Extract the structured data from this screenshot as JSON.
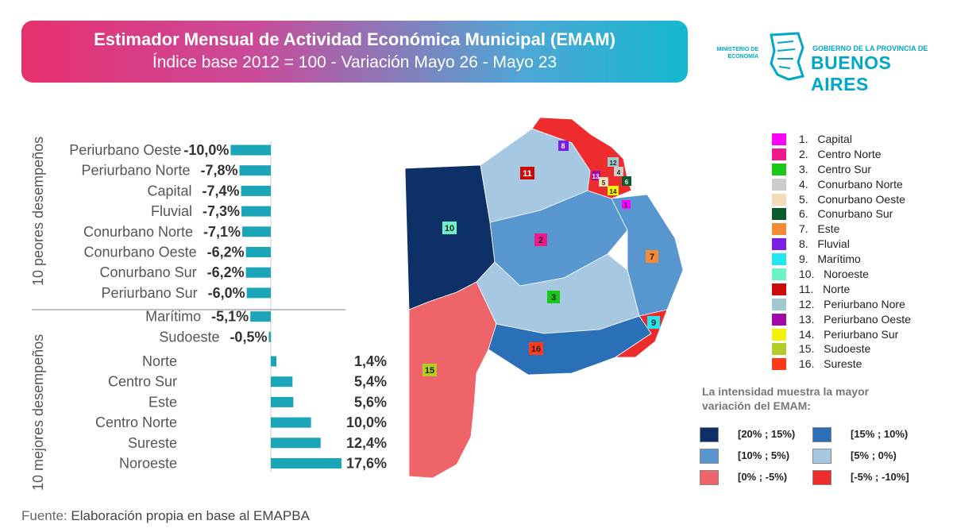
{
  "header": {
    "title": "Estimador Mensual de Actividad Económica Municipal (EMAM)",
    "subtitle": "Índice base 2012 = 100 - Variación Mayo 26 - Mayo 23"
  },
  "logo": {
    "ministry_line1": "MINISTERIO DE",
    "ministry_line2": "ECONOMÍA",
    "gov_line": "GOBIERNO DE LA PROVINCIA DE",
    "province": "BUENOS AIRES"
  },
  "groups": {
    "worst_label": "10 peores desempeños",
    "best_label": "10 mejores desempeños"
  },
  "chart_data": {
    "type": "bar",
    "orientation": "horizontal",
    "categories": [
      "Periurbano Oeste",
      "Periurbano Norte",
      "Capital",
      "Fluvial",
      "Conurbano Norte",
      "Conurbano Oeste",
      "Conurbano Sur",
      "Periurbano Sur",
      "Marítimo",
      "Sudoeste",
      "Norte",
      "Centro Sur",
      "Este",
      "Centro Norte",
      "Sureste",
      "Noroeste"
    ],
    "values": [
      -10.0,
      -7.8,
      -7.4,
      -7.3,
      -7.1,
      -6.2,
      -6.2,
      -6.0,
      -5.1,
      -0.5,
      1.4,
      5.4,
      5.6,
      10.0,
      12.4,
      17.6
    ],
    "value_labels": [
      "-10,0%",
      "-7,8%",
      "-7,4%",
      "-7,3%",
      "-7,1%",
      "-6,2%",
      "-6,2%",
      "-6,0%",
      "-5,1%",
      "-0,5%",
      "1,4%",
      "5,4%",
      "5,6%",
      "10,0%",
      "12,4%",
      "17,6%"
    ],
    "bar_color": "#1aa5b8"
  },
  "map_labels": [
    "1",
    "2",
    "3",
    "4",
    "5",
    "6",
    "7",
    "8",
    "9",
    "10",
    "11",
    "12",
    "13",
    "14",
    "15",
    "16"
  ],
  "map_colors": {
    "range_20_15": "#0d3069",
    "range_15_10": "#2a70b8",
    "range_10_5": "#5796cf",
    "range_5_0": "#a6c8e3",
    "range_0_m5": "#ee6468",
    "range_m5_m10": "#ee2b2d"
  },
  "legend": [
    {
      "num": "1.",
      "name": "Capital",
      "color": "#ff00ff"
    },
    {
      "num": "2.",
      "name": "Centro Norte",
      "color": "#f0198c"
    },
    {
      "num": "3.",
      "name": "Centro Sur",
      "color": "#17c817"
    },
    {
      "num": "4.",
      "name": "Conurbano Norte",
      "color": "#cccccc"
    },
    {
      "num": "5.",
      "name": "Conurbano Oeste",
      "color": "#f3dcb8"
    },
    {
      "num": "6.",
      "name": "Conurbano Sur",
      "color": "#0b5a2c"
    },
    {
      "num": "7.",
      "name": "Este",
      "color": "#f48a33"
    },
    {
      "num": "8.",
      "name": "Fluvial",
      "color": "#7a1ee6"
    },
    {
      "num": "9.",
      "name": "Marítimo",
      "color": "#22e6f0"
    },
    {
      "num": "10.",
      "name": "Noroeste",
      "color": "#6cf2c4"
    },
    {
      "num": "11.",
      "name": "Norte",
      "color": "#cc0a0a"
    },
    {
      "num": "12.",
      "name": "Periurbano Nore",
      "color": "#9fc9cd"
    },
    {
      "num": "13.",
      "name": "Periurbano Oeste",
      "color": "#a10aa8"
    },
    {
      "num": "14.",
      "name": "Periurbano Sur",
      "color": "#f2f20a"
    },
    {
      "num": "15.",
      "name": "Sudoeste",
      "color": "#b4cc2a"
    },
    {
      "num": "16.",
      "name": "Sureste",
      "color": "#ff3a1a"
    }
  ],
  "intensity": {
    "note": "La intensidad muestra la mayor variación del EMAM:",
    "items": [
      {
        "label": "[20% ; 15%)",
        "color": "#0d3069"
      },
      {
        "label": "[15% ; 10%)",
        "color": "#2a70b8"
      },
      {
        "label": "[10% ; 5%)",
        "color": "#5796cf"
      },
      {
        "label": "[5% ; 0%)",
        "color": "#a6c8e3"
      },
      {
        "label": "[0% ; -5%)",
        "color": "#ee6468"
      },
      {
        "label": "[-5% ; -10%]",
        "color": "#ee2b2d"
      }
    ]
  },
  "source": {
    "label": "Fuente:",
    "text": "Elaboración propia en base al EMAPBA"
  }
}
